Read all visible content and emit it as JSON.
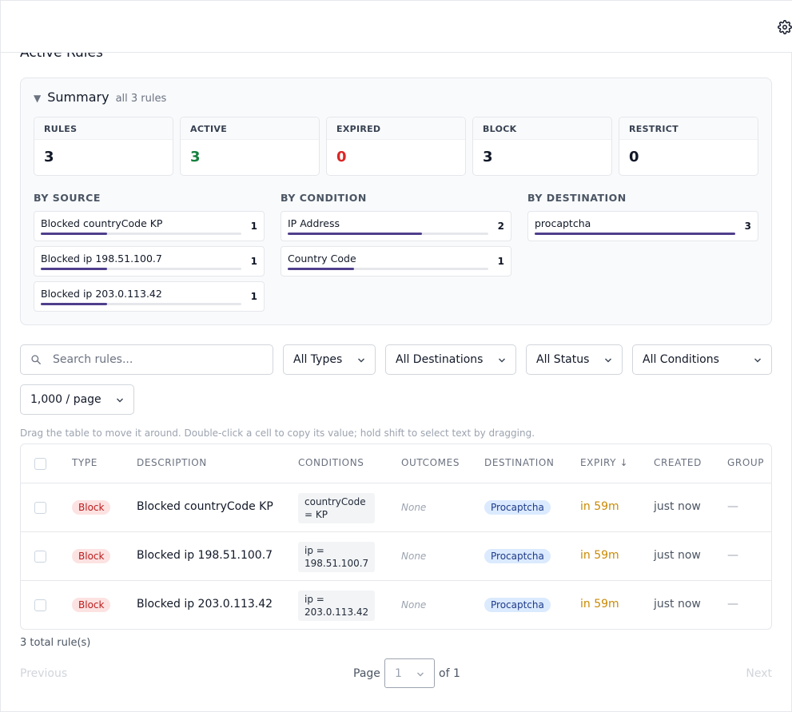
{
  "page": {
    "title": "Active Rules"
  },
  "summary": {
    "title": "Summary",
    "subtitle": "all 3 rules",
    "stats": [
      {
        "label": "RULES",
        "value": "3"
      },
      {
        "label": "ACTIVE",
        "value": "3"
      },
      {
        "label": "EXPIRED",
        "value": "0"
      },
      {
        "label": "BLOCK",
        "value": "3"
      },
      {
        "label": "RESTRICT",
        "value": "0"
      }
    ],
    "by_source": {
      "title": "BY SOURCE",
      "items": [
        {
          "label": "Blocked countryCode KP",
          "count": "1",
          "fraction": 0.33
        },
        {
          "label": "Blocked ip 198.51.100.7",
          "count": "1",
          "fraction": 0.33
        },
        {
          "label": "Blocked ip 203.0.113.42",
          "count": "1",
          "fraction": 0.33
        }
      ]
    },
    "by_condition": {
      "title": "BY CONDITION",
      "items": [
        {
          "label": "IP Address",
          "count": "2",
          "fraction": 0.67
        },
        {
          "label": "Country Code",
          "count": "1",
          "fraction": 0.33
        }
      ]
    },
    "by_destination": {
      "title": "BY DESTINATION",
      "items": [
        {
          "label": "procaptcha",
          "count": "3",
          "fraction": 1.0
        }
      ]
    }
  },
  "filters": {
    "search_placeholder": "Search rules...",
    "types": "All Types",
    "destinations": "All Destinations",
    "status": "All Status",
    "conditions": "All Conditions",
    "page_size": "1,000 / page"
  },
  "hint": "Drag the table to move it around. Double-click a cell to copy its value; hold shift to select text by dragging.",
  "table": {
    "headers": {
      "type": "TYPE",
      "description": "DESCRIPTION",
      "conditions": "CONDITIONS",
      "outcomes": "OUTCOMES",
      "destination": "DESTINATION",
      "expiry": "EXPIRY ↓",
      "created": "CREATED",
      "group": "GROUP"
    },
    "rows": [
      {
        "type": "Block",
        "description": "Blocked countryCode KP",
        "condition": "countryCode = KP",
        "outcomes": "None",
        "destination": "Procaptcha",
        "expiry": "in 59m",
        "created": "just now",
        "group": "—"
      },
      {
        "type": "Block",
        "description": "Blocked ip 198.51.100.7",
        "condition": "ip = 198.51.100.7",
        "outcomes": "None",
        "destination": "Procaptcha",
        "expiry": "in 59m",
        "created": "just now",
        "group": "—"
      },
      {
        "type": "Block",
        "description": "Blocked ip 203.0.113.42",
        "condition": "ip = 203.0.113.42",
        "outcomes": "None",
        "destination": "Procaptcha",
        "expiry": "in 59m",
        "created": "just now",
        "group": "—"
      }
    ]
  },
  "footer": {
    "total": "3 total rule(s)",
    "previous": "Previous",
    "next": "Next",
    "page_label": "Page",
    "page_value": "1",
    "of_label": "of 1"
  },
  "colors": {
    "accent": "#4f3f8c",
    "active": "#15803d",
    "expired": "#dc2626",
    "expiry": "#ca8a04"
  },
  "icons": {
    "settings": "gear-icon",
    "search": "search-icon",
    "dropdown": "chevron-down-icon",
    "collapse": "triangle-down-icon"
  }
}
